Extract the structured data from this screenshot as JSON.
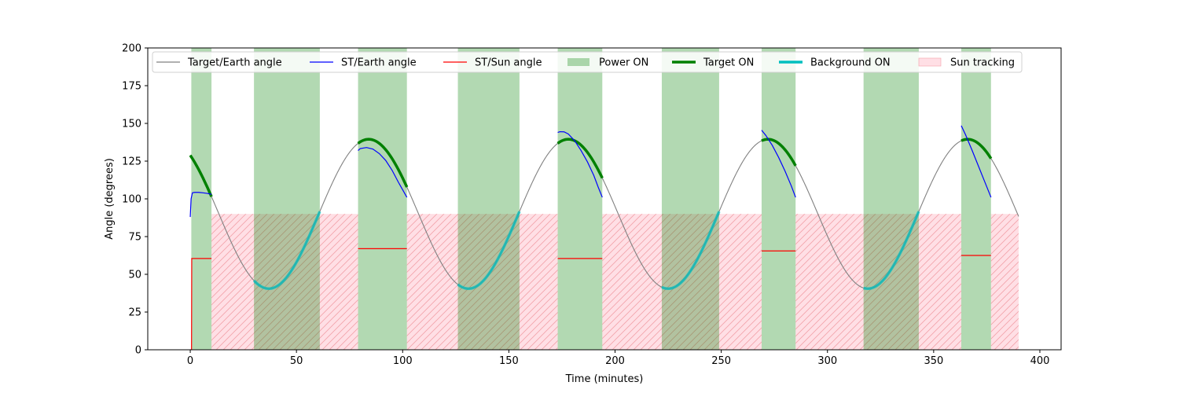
{
  "chart_data": {
    "type": "line",
    "xlabel": "Time (minutes)",
    "ylabel": "Angle (degrees)",
    "xlim": [
      -20,
      410
    ],
    "ylim": [
      0,
      200
    ],
    "xticks": [
      0,
      50,
      100,
      150,
      200,
      250,
      300,
      350,
      400
    ],
    "yticks": [
      0,
      25,
      50,
      75,
      100,
      125,
      150,
      175,
      200
    ],
    "grid": false,
    "legend_position": "top",
    "colors": {
      "target_earth": "#808080",
      "st_earth": "#0000ff",
      "st_sun": "#ff0000",
      "power_on": "#008000",
      "target_on": "#008000",
      "background_on": "#00bfbf",
      "sun_tracking_fill": "#ffc0cb",
      "sun_tracking_hatch": "#f4a0a8"
    },
    "legend": [
      {
        "key": "target_earth",
        "label": "Target/Earth angle",
        "kind": "line"
      },
      {
        "key": "st_earth",
        "label": "ST/Earth angle",
        "kind": "line"
      },
      {
        "key": "st_sun",
        "label": "ST/Sun angle",
        "kind": "line"
      },
      {
        "key": "power_on",
        "label": "Power ON",
        "kind": "patch"
      },
      {
        "key": "target_on",
        "label": "Target ON",
        "kind": "thick"
      },
      {
        "key": "background_on",
        "label": "Background ON",
        "kind": "thick"
      },
      {
        "key": "sun_tracking",
        "label": "Sun tracking",
        "kind": "hatch"
      }
    ],
    "target_earth_model": {
      "mean": 90,
      "amplitude": 49.5,
      "period": 94,
      "peak_time": 84,
      "t_start": 0,
      "t_end": 390
    },
    "power_on_intervals": [
      [
        0.5,
        10
      ],
      [
        30,
        61
      ],
      [
        79,
        102
      ],
      [
        126,
        155
      ],
      [
        173,
        194
      ],
      [
        222,
        249
      ],
      [
        269,
        285
      ],
      [
        317,
        343
      ],
      [
        363,
        377
      ]
    ],
    "sun_tracking_intervals": [
      [
        10,
        79
      ],
      [
        102,
        173
      ],
      [
        194,
        269
      ],
      [
        285,
        363
      ],
      [
        377,
        390
      ]
    ],
    "target_on_intervals": [
      [
        0,
        10
      ],
      [
        79,
        102
      ],
      [
        173,
        194
      ],
      [
        269,
        285
      ],
      [
        363,
        377
      ]
    ],
    "background_on_intervals": [
      [
        30,
        61
      ],
      [
        126,
        155
      ],
      [
        222,
        249
      ],
      [
        317,
        343
      ]
    ],
    "st_earth_segments": [
      {
        "x": [
          0,
          0.4,
          1,
          2,
          4,
          6,
          8,
          10
        ],
        "y": [
          88,
          100,
          104,
          104.3,
          104.3,
          104,
          103.6,
          103
        ]
      },
      {
        "x": [
          79,
          80,
          83,
          86,
          89,
          92,
          95,
          98,
          100,
          102
        ],
        "y": [
          132,
          133.3,
          134,
          133,
          130,
          125.5,
          119,
          111,
          106,
          101
        ]
      },
      {
        "x": [
          173,
          174,
          176,
          178,
          181,
          184,
          187,
          190,
          192,
          194
        ],
        "y": [
          144,
          144.5,
          144.4,
          143,
          138.5,
          132,
          124.5,
          115.5,
          108,
          101
        ]
      },
      {
        "x": [
          269,
          271,
          274,
          277,
          280,
          283,
          285
        ],
        "y": [
          145.5,
          142,
          135.5,
          127.5,
          118.5,
          108.5,
          101
        ]
      },
      {
        "x": [
          363,
          365,
          368,
          371,
          374,
          377
        ],
        "y": [
          148.5,
          142.5,
          132.5,
          122,
          111.5,
          101
        ]
      }
    ],
    "st_sun_segments": [
      {
        "x": [
          0,
          0.6,
          0.7,
          1.2,
          10
        ],
        "y": [
          0,
          0,
          60.5,
          60.5,
          60.5
        ]
      },
      {
        "x": [
          79,
          102
        ],
        "y": [
          67,
          67
        ]
      },
      {
        "x": [
          173,
          194
        ],
        "y": [
          60.5,
          60.5
        ]
      },
      {
        "x": [
          269,
          285
        ],
        "y": [
          65.5,
          65.5
        ]
      },
      {
        "x": [
          363,
          377
        ],
        "y": [
          62.5,
          62.5
        ]
      }
    ]
  }
}
